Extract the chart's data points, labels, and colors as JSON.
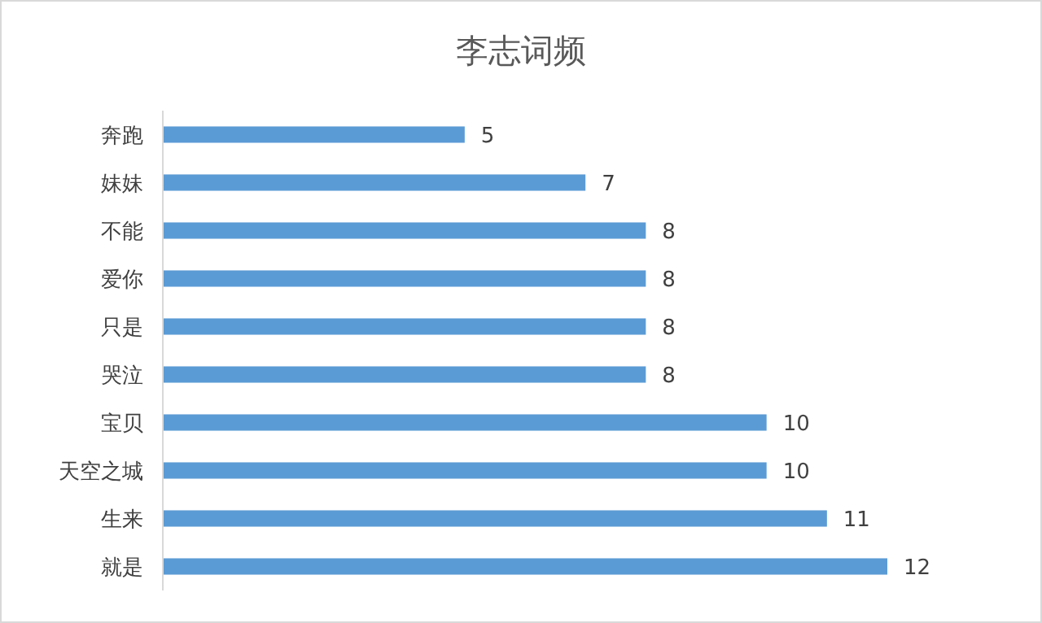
{
  "chart_data": {
    "type": "bar",
    "title": "李志词频",
    "orientation": "horizontal",
    "categories": [
      "奔跑",
      "妹妹",
      "不能",
      "爱你",
      "只是",
      "哭泣",
      "宝贝",
      "天空之城",
      "生来",
      "就是"
    ],
    "values": [
      5,
      7,
      8,
      8,
      8,
      8,
      10,
      10,
      11,
      12
    ],
    "color": "#5b9bd5",
    "data_labels": true
  }
}
